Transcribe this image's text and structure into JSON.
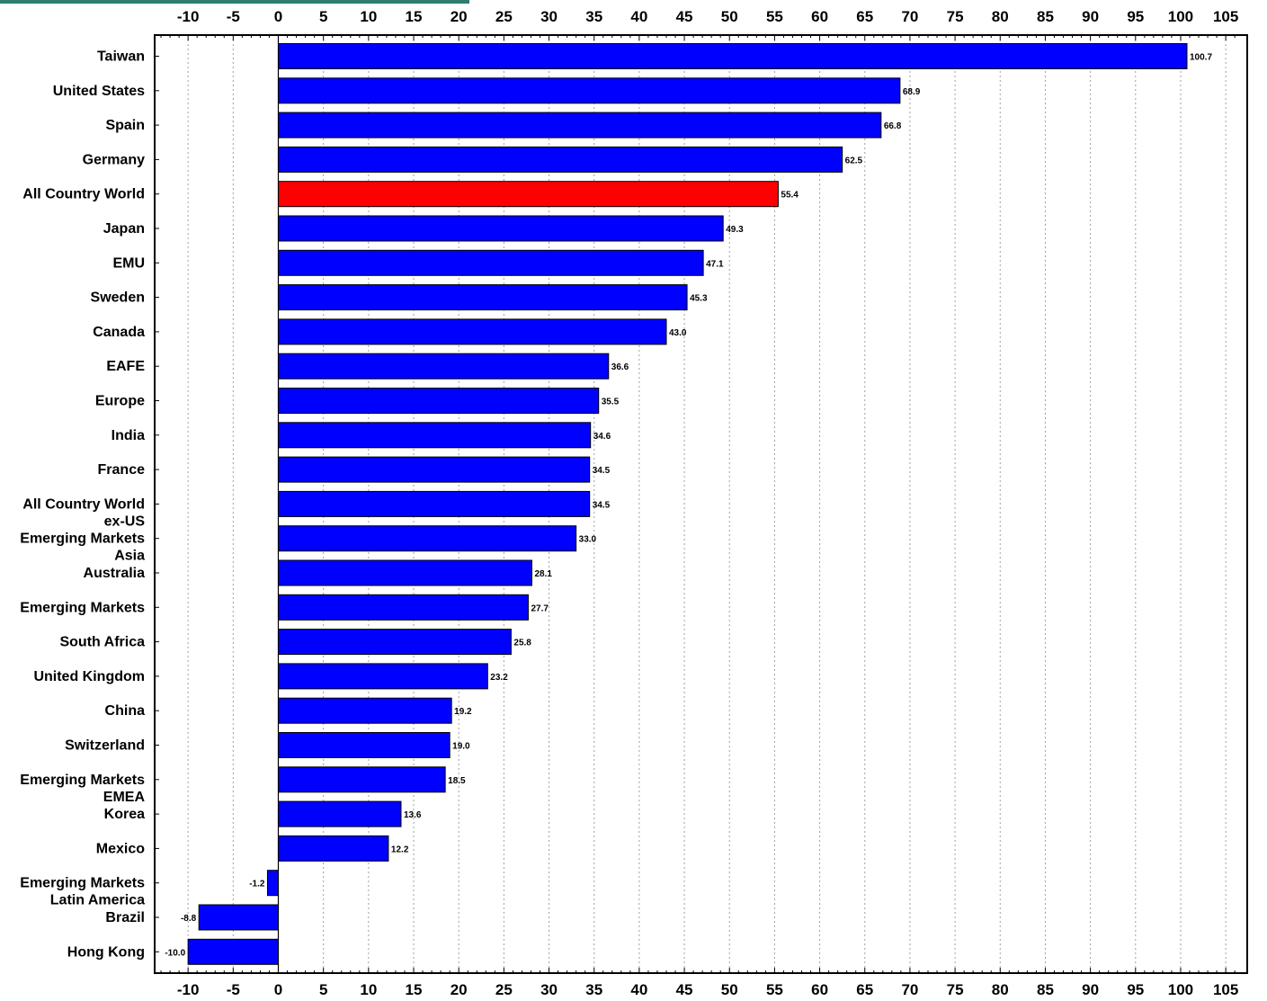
{
  "chart_data": {
    "type": "bar",
    "orientation": "horizontal",
    "categories": [
      "Taiwan",
      "United States",
      "Spain",
      "Germany",
      "All Country World",
      "Japan",
      "EMU",
      "Sweden",
      "Canada",
      "EAFE",
      "Europe",
      "India",
      "France",
      "All Country World ex-US",
      "Emerging Markets Asia",
      "Australia",
      "Emerging Markets",
      "South Africa",
      "United Kingdom",
      "China",
      "Switzerland",
      "Emerging Markets EMEA",
      "Korea",
      "Mexico",
      "Emerging Markets Latin America",
      "Brazil",
      "Hong Kong"
    ],
    "category_lines": [
      [
        "Taiwan"
      ],
      [
        "United States"
      ],
      [
        "Spain"
      ],
      [
        "Germany"
      ],
      [
        "All Country World"
      ],
      [
        "Japan"
      ],
      [
        "EMU"
      ],
      [
        "Sweden"
      ],
      [
        "Canada"
      ],
      [
        "EAFE"
      ],
      [
        "Europe"
      ],
      [
        "India"
      ],
      [
        "France"
      ],
      [
        "All Country World",
        "ex-US"
      ],
      [
        "Emerging Markets",
        "Asia"
      ],
      [
        "Australia"
      ],
      [
        "Emerging Markets"
      ],
      [
        "South Africa"
      ],
      [
        "United Kingdom"
      ],
      [
        "China"
      ],
      [
        "Switzerland"
      ],
      [
        "Emerging Markets",
        "EMEA"
      ],
      [
        "Korea"
      ],
      [
        "Mexico"
      ],
      [
        "Emerging Markets",
        "Latin America"
      ],
      [
        "Brazil"
      ],
      [
        "Hong Kong"
      ]
    ],
    "values": [
      100.7,
      68.9,
      66.8,
      62.5,
      55.4,
      49.3,
      47.1,
      45.3,
      43.0,
      36.6,
      35.5,
      34.6,
      34.5,
      34.5,
      33.0,
      28.1,
      27.7,
      25.8,
      23.2,
      19.2,
      19.0,
      18.5,
      13.6,
      12.2,
      -1.2,
      -8.8,
      -10.0
    ],
    "data_labels": [
      "100.7",
      "68.9",
      "66.8",
      "62.5",
      "55.4",
      "49.3",
      "47.1",
      "45.3",
      "43.0",
      "36.6",
      "35.5",
      "34.6",
      "34.5",
      "34.5",
      "33.0",
      "28.1",
      "27.7",
      "25.8",
      "23.2",
      "19.2",
      "19.0",
      "18.5",
      "13.6",
      "12.2",
      "-1.2",
      "-8.8",
      "-10.0"
    ],
    "highlight_category": "All Country World",
    "xlim": [
      -13.5,
      106.5
    ],
    "x_ticks": [
      "-10",
      "-5",
      "0",
      "5",
      "10",
      "15",
      "20",
      "25",
      "30",
      "35",
      "40",
      "45",
      "50",
      "55",
      "60",
      "65",
      "70",
      "75",
      "80",
      "85",
      "90",
      "95",
      "100",
      "105"
    ],
    "tick_axes": "top-and-bottom",
    "grid": "vertical-dotted",
    "title": "",
    "xlabel": "",
    "ylabel": "",
    "colors": {
      "bar": "#0000ff",
      "highlight": "#ff0000",
      "grid": "#a0a0a0",
      "axis": "#000000",
      "accent": "#2e7d6e"
    }
  }
}
